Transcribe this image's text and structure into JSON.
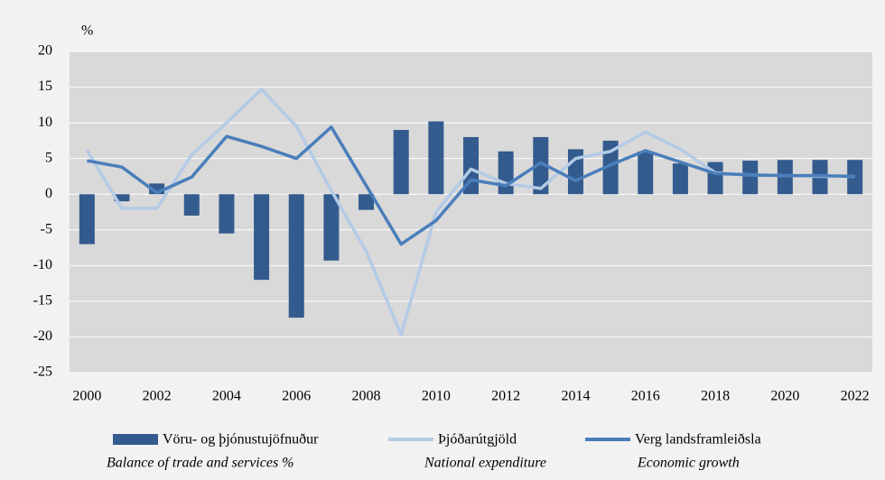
{
  "chart_data": {
    "type": "bar",
    "y_unit": "%",
    "categories": [
      "2000",
      null,
      "2002",
      null,
      "2004",
      null,
      "2006",
      null,
      "2008",
      null,
      "2010",
      null,
      "2012",
      null,
      "2014",
      null,
      "2016",
      null,
      "2018",
      null,
      "2020",
      null,
      "2022"
    ],
    "series": [
      {
        "name": "Vöru- og þjónustujöfnuður",
        "subtitle": "Balance of trade and services %",
        "type": "bar",
        "color": "#335b8e",
        "values": [
          -7,
          -1,
          1.5,
          -3,
          -5.5,
          -12,
          -17.3,
          -9.3,
          -2.2,
          9,
          10.2,
          8,
          6,
          8,
          6.3,
          7.5,
          6,
          4.3,
          4.5,
          4.7,
          4.8,
          4.8,
          4.8
        ]
      },
      {
        "name": "Þjóðarútgjöld",
        "subtitle": "National expenditure",
        "type": "line",
        "color": "#b4cbe6",
        "values": [
          6.2,
          -2,
          -2,
          5.5,
          10,
          14.7,
          9.5,
          0.5,
          -8,
          -19.7,
          -2.5,
          3.5,
          1.5,
          0.8,
          5,
          6,
          8.7,
          6.3,
          3,
          2.7,
          2.6,
          2.5,
          2.5
        ]
      },
      {
        "name": "Verg landsframleiðsla",
        "subtitle": "Economic growth",
        "type": "line",
        "color": "#4a7ebb",
        "values": [
          4.7,
          3.8,
          0.2,
          2.4,
          8.1,
          6.7,
          5,
          9.4,
          1.2,
          -7,
          -3.7,
          2,
          1.2,
          4.4,
          1.9,
          4.1,
          6.1,
          4.5,
          2.9,
          2.7,
          2.6,
          2.6,
          2.5
        ]
      }
    ],
    "ylim": [
      -25,
      20
    ],
    "yticks": [
      -25,
      -20,
      -15,
      -10,
      -5,
      0,
      5,
      10,
      15,
      20
    ],
    "grid": true
  }
}
